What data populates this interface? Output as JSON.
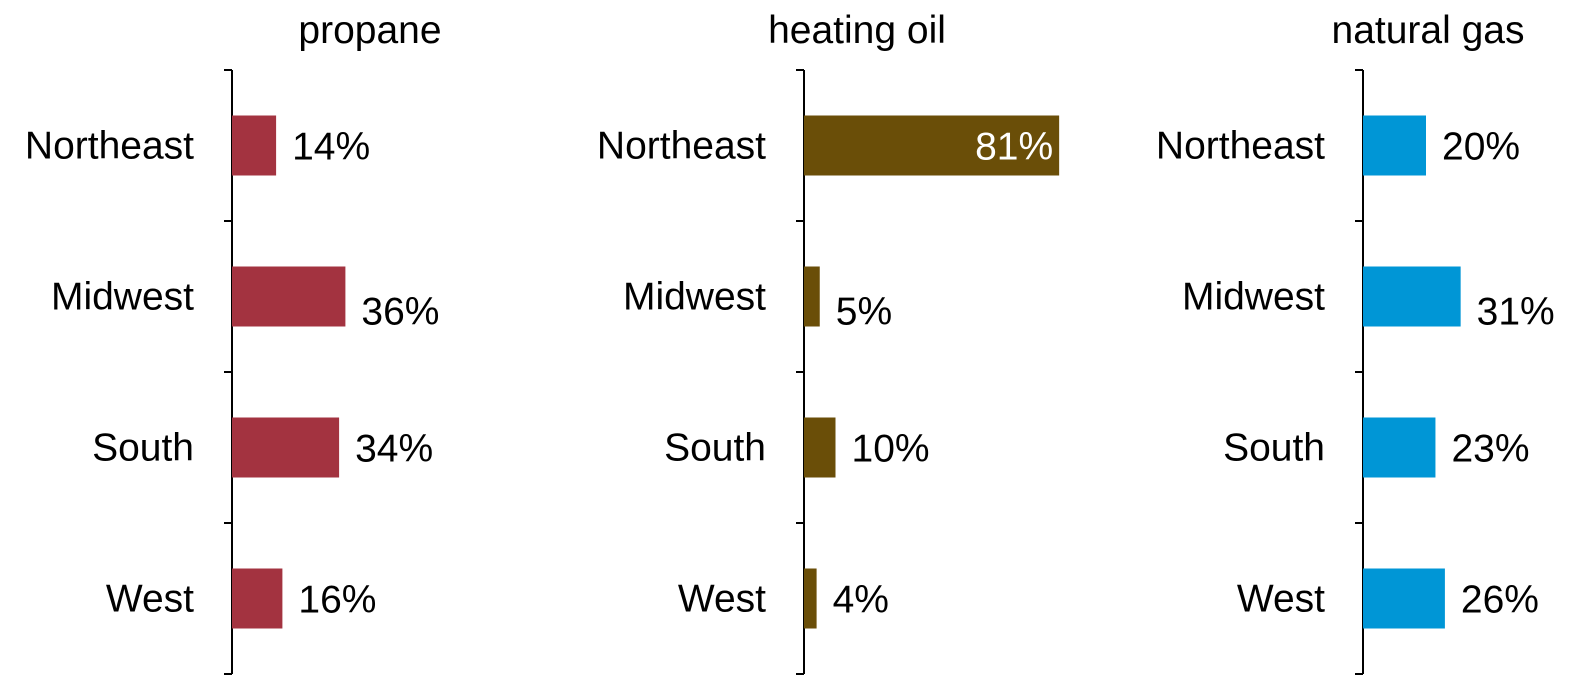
{
  "chart_data": [
    {
      "type": "bar",
      "orientation": "horizontal",
      "title": "propane",
      "categories": [
        "Northeast",
        "Midwest",
        "South",
        "West"
      ],
      "values": [
        14,
        36,
        34,
        16
      ],
      "value_labels": [
        "14%",
        "36%",
        "34%",
        "16%"
      ],
      "unit": "%",
      "color": "#A33340",
      "xlim": [
        0,
        100
      ],
      "grid": false
    },
    {
      "type": "bar",
      "orientation": "horizontal",
      "title": "heating oil",
      "categories": [
        "Northeast",
        "Midwest",
        "South",
        "West"
      ],
      "values": [
        81,
        5,
        10,
        4
      ],
      "value_labels": [
        "81%",
        "5%",
        "10%",
        "4%"
      ],
      "unit": "%",
      "color": "#6A4E08",
      "xlim": [
        0,
        100
      ],
      "grid": false
    },
    {
      "type": "bar",
      "orientation": "horizontal",
      "title": "natural gas",
      "categories": [
        "Northeast",
        "Midwest",
        "South",
        "West"
      ],
      "values": [
        20,
        31,
        23,
        26
      ],
      "value_labels": [
        "20%",
        "31%",
        "23%",
        "26%"
      ],
      "unit": "%",
      "color": "#0096D6",
      "xlim": [
        0,
        100
      ],
      "grid": false
    }
  ]
}
